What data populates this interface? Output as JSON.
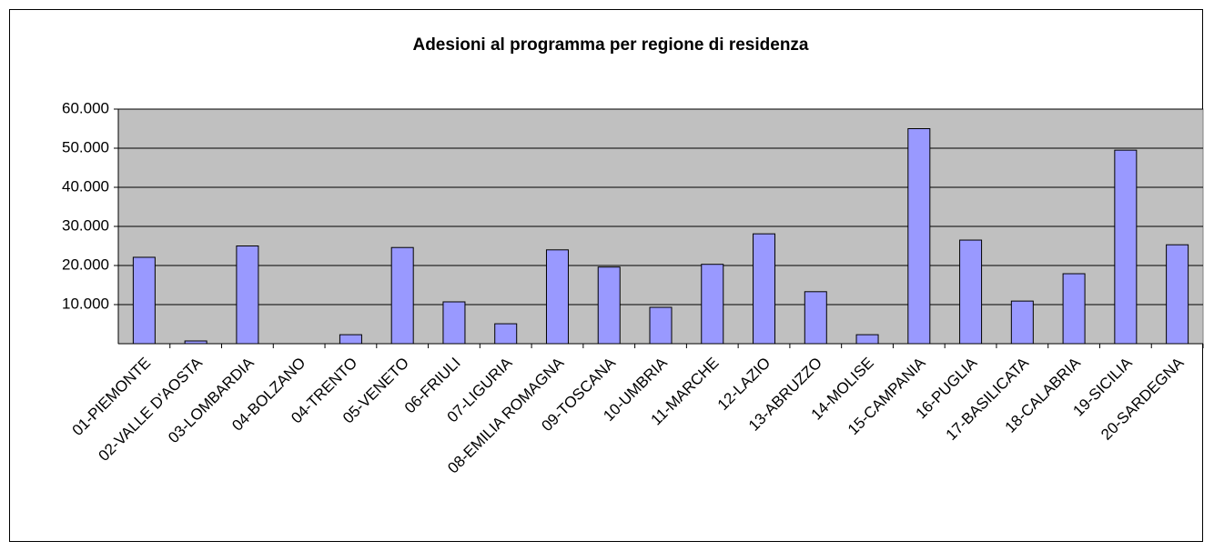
{
  "chart_data": {
    "type": "bar",
    "title": "Adesioni al programma per regione di residenza",
    "categories": [
      "01-PIEMONTE",
      "02-VALLE D'AOSTA",
      "03-LOMBARDIA",
      "04-BOLZANO",
      "04-TRENTO",
      "05-VENETO",
      "06-FRIULI",
      "07-LIGURIA",
      "08-EMILIA ROMAGNA",
      "09-TOSCANA",
      "10-UMBRIA",
      "11-MARCHE",
      "12-LAZIO",
      "13-ABRUZZO",
      "14-MOLISE",
      "15-CAMPANIA",
      "16-PUGLIA",
      "17-BASILICATA",
      "18-CALABRIA",
      "19-SICILIA",
      "20-SARDEGNA"
    ],
    "values": [
      22100,
      700,
      25000,
      0,
      2300,
      24600,
      10700,
      5100,
      24000,
      19600,
      9300,
      20300,
      28100,
      13300,
      2300,
      55000,
      26500,
      10900,
      17900,
      49500,
      25300
    ],
    "color": "#9999ff",
    "ylim": [
      0,
      60000
    ],
    "yticks": [
      {
        "value": 10000,
        "label": "10.000"
      },
      {
        "value": 20000,
        "label": "20.000"
      },
      {
        "value": 30000,
        "label": "30.000"
      },
      {
        "value": 40000,
        "label": "40.000"
      },
      {
        "value": 50000,
        "label": "50.000"
      },
      {
        "value": 60000,
        "label": "60.000"
      }
    ],
    "grid": true
  }
}
